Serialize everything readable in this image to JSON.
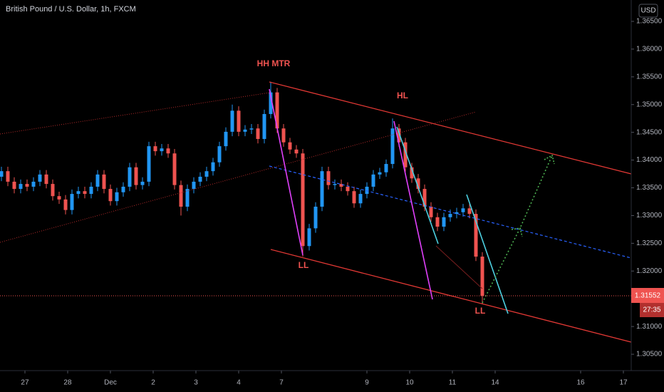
{
  "header": {
    "title": "British Pound / U.S. Dollar, 1h, FXCM",
    "currency": "USD"
  },
  "chart_data": {
    "type": "candlestick",
    "up_color": "#2196f3",
    "down_color": "#ef5350",
    "x": [
      -0.55,
      -0.4,
      -0.25,
      -0.1,
      0.05,
      0.2,
      0.35,
      0.5,
      0.65,
      0.8,
      0.95,
      1.1,
      1.25,
      1.4,
      1.55,
      1.7,
      1.85,
      2,
      2.15,
      2.3,
      2.45,
      2.6,
      2.75,
      2.9,
      3.05,
      3.2,
      3.35,
      3.5,
      3.65,
      3.8,
      3.95,
      4.1,
      4.25,
      4.4,
      4.55,
      4.7,
      4.85,
      5,
      5.15,
      5.3,
      5.45,
      5.6,
      5.75,
      5.9,
      6.05,
      6.2,
      6.35,
      6.5,
      6.65,
      6.8,
      6.95,
      7.1,
      7.25,
      7.4,
      7.55,
      7.7,
      7.85,
      8,
      8.15,
      8.3,
      8.45,
      8.6,
      8.75,
      8.9,
      9.05,
      9.2,
      9.35,
      9.5,
      9.65,
      9.8,
      9.95,
      10.1,
      10.25,
      10.4,
      10.55,
      10.7
    ],
    "open": [
      1.337,
      1.338,
      1.3361,
      1.3348,
      1.3357,
      1.3352,
      1.3361,
      1.3374,
      1.3357,
      1.3335,
      1.3329,
      1.331,
      1.3339,
      1.3344,
      1.3339,
      1.3352,
      1.3374,
      1.3348,
      1.3326,
      1.3342,
      1.3352,
      1.3387,
      1.3355,
      1.3361,
      1.3425,
      1.3416,
      1.3421,
      1.3412,
      1.3355,
      1.3316,
      1.3348,
      1.3361,
      1.337,
      1.338,
      1.3396,
      1.3425,
      1.3451,
      1.3489,
      1.3451,
      1.3455,
      1.3457,
      1.3438,
      1.3483,
      1.3522,
      1.3457,
      1.3432,
      1.3419,
      1.3412,
      1.3245,
      1.3277,
      1.3316,
      1.338,
      1.3355,
      1.3357,
      1.3352,
      1.3344,
      1.3322,
      1.3339,
      1.3352,
      1.3374,
      1.3378,
      1.3393,
      1.3457,
      1.3432,
      1.3387,
      1.3367,
      1.3348,
      1.3316,
      1.3297,
      1.328,
      1.3297,
      1.3303,
      1.3306,
      1.3313,
      1.3303,
      1.3226
    ],
    "high": [
      1.3388,
      1.3388,
      1.3369,
      1.3365,
      1.3365,
      1.3369,
      1.3382,
      1.3382,
      1.3365,
      1.3343,
      1.3337,
      1.3347,
      1.3352,
      1.3352,
      1.336,
      1.3382,
      1.3382,
      1.3356,
      1.335,
      1.336,
      1.3395,
      1.3395,
      1.3369,
      1.3433,
      1.3433,
      1.3429,
      1.3429,
      1.342,
      1.3363,
      1.3356,
      1.3369,
      1.3378,
      1.3388,
      1.3404,
      1.3433,
      1.3459,
      1.35,
      1.3497,
      1.3463,
      1.3465,
      1.3465,
      1.3491,
      1.3541,
      1.353,
      1.3465,
      1.344,
      1.3427,
      1.342,
      1.3285,
      1.3324,
      1.3388,
      1.3388,
      1.3365,
      1.3365,
      1.336,
      1.3352,
      1.3347,
      1.336,
      1.3382,
      1.3386,
      1.3401,
      1.3475,
      1.3465,
      1.344,
      1.3395,
      1.3375,
      1.3356,
      1.3324,
      1.3305,
      1.3305,
      1.3311,
      1.3314,
      1.3321,
      1.3321,
      1.3311,
      1.3234
    ],
    "low": [
      1.3362,
      1.3353,
      1.334,
      1.334,
      1.3344,
      1.3344,
      1.3353,
      1.3349,
      1.3327,
      1.3321,
      1.3302,
      1.3302,
      1.3331,
      1.3331,
      1.3331,
      1.3344,
      1.334,
      1.3318,
      1.3318,
      1.3334,
      1.3344,
      1.3347,
      1.3347,
      1.3353,
      1.3408,
      1.3408,
      1.3404,
      1.3347,
      1.33,
      1.3308,
      1.334,
      1.3353,
      1.3362,
      1.3372,
      1.3388,
      1.3417,
      1.3443,
      1.3443,
      1.3443,
      1.3447,
      1.343,
      1.343,
      1.3475,
      1.3449,
      1.3424,
      1.3411,
      1.3404,
      1.3226,
      1.3237,
      1.3269,
      1.3308,
      1.3347,
      1.3347,
      1.3344,
      1.3336,
      1.3314,
      1.3314,
      1.3331,
      1.3344,
      1.3366,
      1.337,
      1.3385,
      1.3424,
      1.3379,
      1.3359,
      1.334,
      1.3308,
      1.3289,
      1.3272,
      1.3272,
      1.3289,
      1.3295,
      1.3298,
      1.3295,
      1.3218,
      1.314
    ],
    "close": [
      1.338,
      1.3361,
      1.3348,
      1.3357,
      1.3352,
      1.3361,
      1.3374,
      1.3357,
      1.3335,
      1.3329,
      1.331,
      1.3339,
      1.3344,
      1.3339,
      1.3352,
      1.3374,
      1.3348,
      1.3326,
      1.3342,
      1.3352,
      1.3387,
      1.3355,
      1.3361,
      1.3425,
      1.3416,
      1.3421,
      1.3412,
      1.3355,
      1.3316,
      1.3348,
      1.3361,
      1.337,
      1.338,
      1.3396,
      1.3425,
      1.3451,
      1.3489,
      1.3451,
      1.3455,
      1.3457,
      1.3438,
      1.3483,
      1.3522,
      1.3457,
      1.3432,
      1.3419,
      1.3412,
      1.3245,
      1.3277,
      1.3316,
      1.338,
      1.3355,
      1.3357,
      1.3352,
      1.3344,
      1.3322,
      1.3339,
      1.3352,
      1.3374,
      1.3378,
      1.3393,
      1.3457,
      1.3432,
      1.3387,
      1.3367,
      1.3348,
      1.3316,
      1.3297,
      1.328,
      1.3297,
      1.3303,
      1.3306,
      1.3313,
      1.3303,
      1.3226,
      1.31552
    ],
    "xlim": [
      -0.5833,
      14.1833
    ],
    "ylim": [
      1.30231,
      1.36885
    ],
    "xticks": [
      {
        "value": 0,
        "label": "27"
      },
      {
        "value": 1,
        "label": "28"
      },
      {
        "value": 2,
        "label": "Dec"
      },
      {
        "value": 3,
        "label": "2"
      },
      {
        "value": 4,
        "label": "3"
      },
      {
        "value": 5,
        "label": "4"
      },
      {
        "value": 6,
        "label": "7"
      },
      {
        "value": 8,
        "label": "9"
      },
      {
        "value": 9,
        "label": "10"
      },
      {
        "value": 10,
        "label": "11"
      },
      {
        "value": 11,
        "label": "14"
      },
      {
        "value": 13,
        "label": "16"
      },
      {
        "value": 14,
        "label": "17"
      }
    ],
    "yticks": [
      {
        "value": 1.365,
        "label": "1.36500"
      },
      {
        "value": 1.36,
        "label": "1.36000"
      },
      {
        "value": 1.355,
        "label": "1.35500"
      },
      {
        "value": 1.35,
        "label": "1.35000"
      },
      {
        "value": 1.345,
        "label": "1.34500"
      },
      {
        "value": 1.34,
        "label": "1.34000"
      },
      {
        "value": 1.335,
        "label": "1.33500"
      },
      {
        "value": 1.33,
        "label": "1.33000"
      },
      {
        "value": 1.325,
        "label": "1.32500"
      },
      {
        "value": 1.32,
        "label": "1.32000"
      },
      {
        "value": 1.31,
        "label": "1.31000"
      },
      {
        "value": 1.305,
        "label": "1.30500"
      }
    ],
    "countdown": "27:35",
    "annotations": [
      "HH MTR",
      "HL",
      "LL",
      "LL"
    ]
  }
}
